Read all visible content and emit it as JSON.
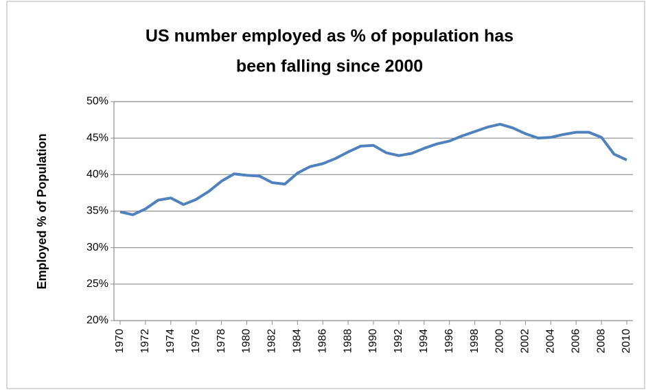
{
  "chart_data": {
    "type": "line",
    "title": [
      "US number employed as % of population has",
      "been falling since 2000"
    ],
    "y_label": "Employed % of Population",
    "x": [
      1970,
      1971,
      1972,
      1973,
      1974,
      1975,
      1976,
      1977,
      1978,
      1979,
      1980,
      1981,
      1982,
      1983,
      1984,
      1985,
      1986,
      1987,
      1988,
      1989,
      1990,
      1991,
      1992,
      1993,
      1994,
      1995,
      1996,
      1997,
      1998,
      1999,
      2000,
      2001,
      2002,
      2003,
      2004,
      2005,
      2006,
      2007,
      2008,
      2009,
      2010
    ],
    "series": [
      {
        "name": "Employed % of Population",
        "color": "#4f81bd",
        "values": [
          34.9,
          34.5,
          35.3,
          36.5,
          36.8,
          35.9,
          36.6,
          37.7,
          39.1,
          40.1,
          39.9,
          39.8,
          38.9,
          38.7,
          40.2,
          41.1,
          41.5,
          42.2,
          43.1,
          43.9,
          44.0,
          43.0,
          42.6,
          42.9,
          43.6,
          44.2,
          44.6,
          45.3,
          45.9,
          46.5,
          46.9,
          46.4,
          45.6,
          45.0,
          45.1,
          45.5,
          45.8,
          45.8,
          45.1,
          42.8,
          42.0
        ]
      }
    ],
    "xlim": [
      1970,
      2010
    ],
    "xticks": [
      1970,
      1972,
      1974,
      1976,
      1978,
      1980,
      1982,
      1984,
      1986,
      1988,
      1990,
      1992,
      1994,
      1996,
      1998,
      2000,
      2002,
      2004,
      2006,
      2008,
      2010
    ],
    "ylim": [
      20,
      50
    ],
    "yticks": [
      {
        "value": 20,
        "label": "20%"
      },
      {
        "value": 25,
        "label": "25%"
      },
      {
        "value": 30,
        "label": "30%"
      },
      {
        "value": 35,
        "label": "35%"
      },
      {
        "value": 40,
        "label": "40%"
      },
      {
        "value": 45,
        "label": "45%"
      },
      {
        "value": 50,
        "label": "50%"
      }
    ],
    "grid": true
  }
}
